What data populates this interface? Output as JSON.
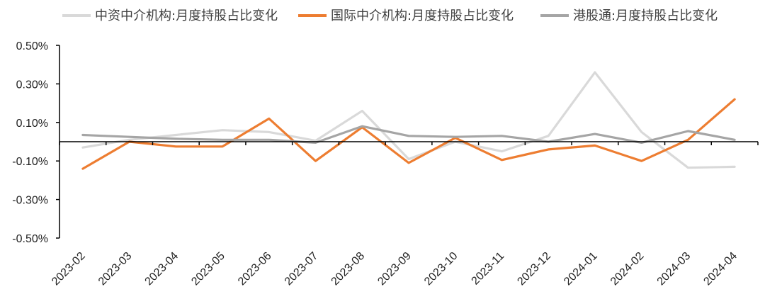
{
  "chart_data": {
    "type": "line",
    "categories": [
      "2023-02",
      "2023-03",
      "2023-04",
      "2023-05",
      "2023-06",
      "2023-07",
      "2023-08",
      "2023-09",
      "2023-10",
      "2023-11",
      "2023-12",
      "2024-01",
      "2024-02",
      "2024-03",
      "2024-04"
    ],
    "ylim": [
      -0.5,
      0.5
    ],
    "yticks": [
      -0.5,
      -0.3,
      -0.1,
      0.1,
      0.3,
      0.5
    ],
    "ytick_labels": [
      "-0.50%",
      "-0.30%",
      "-0.10%",
      "0.10%",
      "0.30%",
      "0.50%"
    ],
    "grid": false,
    "legend_position": "top",
    "series": [
      {
        "name": "中资中介机构:月度持股占比变化",
        "color": "#d9d9d9",
        "values": [
          -0.03,
          0.01,
          0.035,
          0.06,
          0.05,
          0.005,
          0.16,
          -0.09,
          0.0,
          -0.05,
          0.03,
          0.36,
          0.05,
          -0.135,
          -0.13
        ]
      },
      {
        "name": "国际中介机构:月度持股占比变化",
        "color": "#ed7d31",
        "values": [
          -0.14,
          0.0,
          -0.025,
          -0.025,
          0.12,
          -0.1,
          0.075,
          -0.11,
          0.02,
          -0.095,
          -0.04,
          -0.02,
          -0.1,
          0.01,
          0.22
        ]
      },
      {
        "name": "港股通:月度持股占比变化",
        "color": "#a5a5a5",
        "values": [
          0.035,
          0.025,
          0.015,
          0.01,
          0.01,
          -0.005,
          0.08,
          0.03,
          0.025,
          0.03,
          0.0,
          0.04,
          -0.005,
          0.055,
          0.01
        ]
      }
    ]
  }
}
